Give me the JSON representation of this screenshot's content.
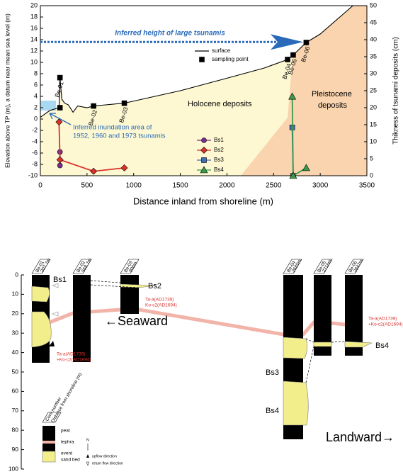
{
  "chart_data": {
    "type": "line",
    "xlabel": "Distance inland from shoreline (m)",
    "ylabel": "Elevation above TP (m), a datum near mean sea level (m)",
    "y2label": "Thikness of tsunami deposits (cm)",
    "xlim": [
      0,
      3500
    ],
    "xticks": [
      0,
      500,
      1000,
      1500,
      2000,
      2500,
      3000,
      3500
    ],
    "ylim": [
      -10,
      20
    ],
    "yticks": [
      -10,
      -8,
      -6,
      -4,
      -2,
      0,
      2,
      4,
      6,
      8,
      10,
      12,
      14,
      16,
      18,
      20
    ],
    "y2lim": [
      0,
      50
    ],
    "y2ticks": [
      0,
      5,
      10,
      15,
      20,
      25,
      30,
      35,
      40,
      45,
      50
    ],
    "series": [
      {
        "name": "surface",
        "mode": "line",
        "color": "#000000",
        "x": [
          0,
          100,
          200,
          210,
          230,
          260,
          300,
          350,
          400,
          500,
          570,
          700,
          900,
          1500,
          2000,
          2400,
          2650,
          2710,
          2850,
          3000,
          3350
        ],
        "values": [
          0.3,
          1.5,
          2.0,
          7.3,
          3.5,
          2.8,
          2.5,
          1.2,
          2.3,
          2.0,
          2.3,
          2.5,
          2.8,
          5.0,
          7.2,
          9.0,
          10.5,
          11.3,
          13.5,
          15.0,
          20.0
        ]
      },
      {
        "name": "sampling point",
        "mode": "markers",
        "marker": "square",
        "color": "#000000",
        "x": [
          210,
          210,
          570,
          900,
          2650,
          2710,
          2850
        ],
        "values": [
          7.3,
          2.0,
          2.3,
          2.8,
          10.5,
          11.3,
          13.5
        ],
        "labels": [
          "Be-01",
          null,
          "Be-02",
          "Be-03",
          "Be-04",
          "Be-05",
          "Be-06"
        ]
      },
      {
        "name": "Bs1",
        "mode": "lines+markers",
        "marker": "circle",
        "color": "#7b2d8e",
        "axis": "y2",
        "x": [
          210,
          210
        ],
        "values": [
          7,
          3
        ]
      },
      {
        "name": "Bs2",
        "mode": "lines+markers",
        "marker": "diamond",
        "color": "#d9322b",
        "axis": "y2",
        "x": [
          200,
          210,
          570,
          900
        ],
        "values": [
          15.8,
          4.7,
          1.3,
          2.3
        ]
      },
      {
        "name": "Bs3",
        "mode": "lines+markers",
        "marker": "square",
        "color": "#3f6fb5",
        "axis": "y2",
        "x": [
          2700,
          2710
        ],
        "values": [
          14.2,
          0
        ]
      },
      {
        "name": "Bs4",
        "mode": "lines+markers",
        "marker": "triangle",
        "color": "#3a9a4a",
        "axis": "y2",
        "x": [
          2700,
          2710,
          2850
        ],
        "values": [
          23.3,
          0,
          2.3
        ]
      }
    ],
    "annotations": {
      "large_tsunami_height": 13.6,
      "large_tsunami_text": "Inferred height of large tsunamis",
      "inundation_area": [
        "Inferred inundation area of",
        "1952, 1960 and 1973 tsunamis"
      ],
      "holocene": "Holocene deposits",
      "pleistocene": [
        "Pleistocene",
        "deposits"
      ]
    }
  },
  "core_diagram": {
    "depth_ticks": [
      0,
      10,
      20,
      30,
      40,
      50,
      60,
      70,
      80,
      90,
      100
    ],
    "cores": [
      {
        "name": "Be-01",
        "distance": "207.7m"
      },
      {
        "name": "Be-02",
        "distance": "568.7m"
      },
      {
        "name": "Be-03",
        "distance": "906m"
      },
      {
        "name": "Be-04",
        "distance": "2685m"
      },
      {
        "name": "Be-05",
        "distance": "2716m"
      },
      {
        "name": "Be-06",
        "distance": "2847m"
      }
    ],
    "beds": [
      "Bs1",
      "Bs2",
      "Bs3",
      "Bs4",
      "Bs4"
    ],
    "tephra_notes": [
      [
        "Ta-a(AD1739)",
        "+Ko-c2(AD1694)"
      ],
      [
        "Ta-a(AD1739)",
        "Ko-c2(AD1694)"
      ],
      [
        "Ta-a(AD1739)",
        "+Ko-c2(AD1694)"
      ]
    ],
    "seaward": "←Seaward",
    "landward": "Landward→",
    "legend": {
      "core_number": "Core number",
      "distance": "Distance from shoreline (m)",
      "peat": "peat",
      "tephra": "tephra",
      "event": "event",
      "sand_bed": "sand bed",
      "north": "N",
      "upflow": "upflow direction",
      "return_flow": "return flow direction"
    }
  }
}
